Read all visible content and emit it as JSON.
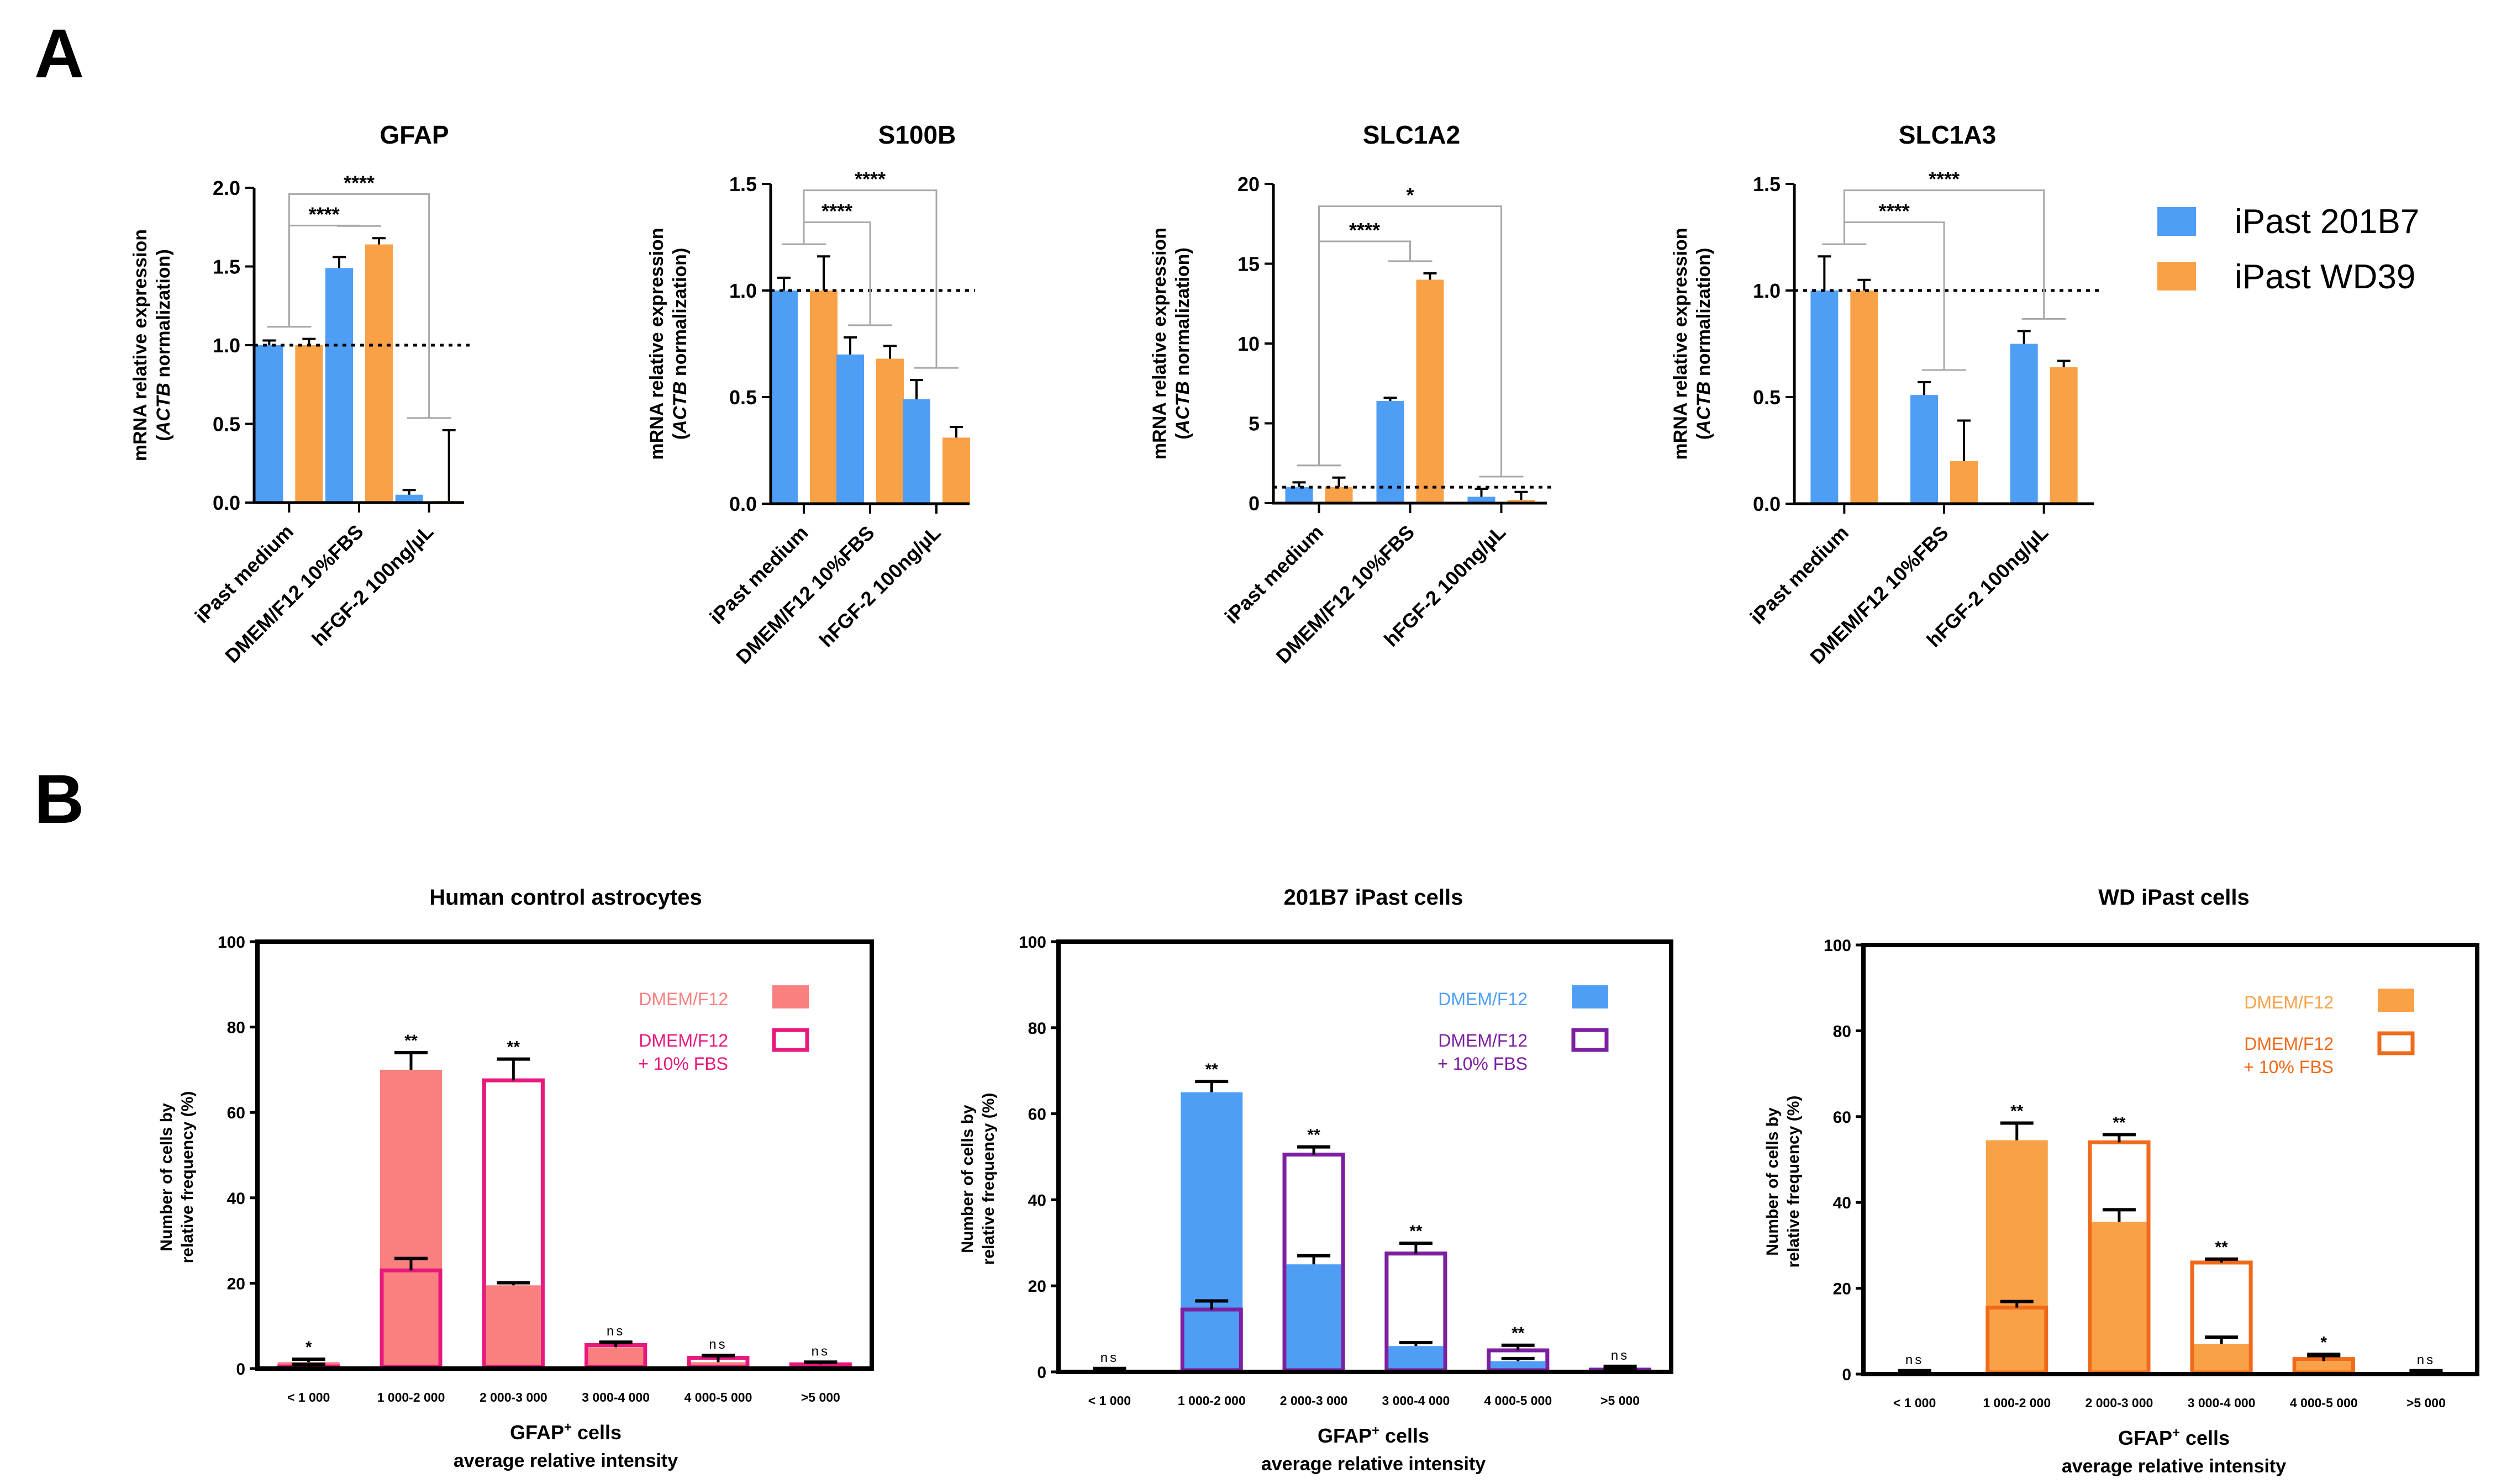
{
  "panels": {
    "a": "A",
    "b": "B"
  },
  "chart_data": [
    {
      "type": "bar",
      "panel": "A",
      "title": "GFAP",
      "ylabel_line1": "mRNA relative expression",
      "ylabel_line2_italic": "ACTB",
      "ylabel_line2_rest": " normalization)",
      "ylabel_line2_open": "(",
      "ylim": [
        0,
        2.0
      ],
      "yticks": [
        "0.0",
        "0.5",
        "1.0",
        "1.5",
        "2.0"
      ],
      "categories": [
        "iPast medium",
        "DMEM/F12 10%FBS",
        "hFGF-2 100ng/µL"
      ],
      "series": [
        {
          "name": "iPast 201B7",
          "values": [
            1.0,
            1.49,
            0.05
          ],
          "errors": [
            0.03,
            0.07,
            0.03
          ]
        },
        {
          "name": "iPast WD39",
          "values": [
            1.0,
            1.64,
            0.01
          ],
          "errors": [
            0.04,
            0.04,
            0.45
          ]
        }
      ],
      "reference_line": 1.0,
      "significance": [
        "****",
        "****"
      ]
    },
    {
      "type": "bar",
      "panel": "A",
      "title": "S100B",
      "ylabel_line1": "mRNA relative expression",
      "ylabel_line2_italic": "ACTB",
      "ylabel_line2_rest": " normalization)",
      "ylabel_line2_open": "(",
      "ylim": [
        0,
        1.5
      ],
      "yticks": [
        "0.0",
        "0.5",
        "1.0",
        "1.5"
      ],
      "categories": [
        "iPast medium",
        "DMEM/F12 10%FBS",
        "hFGF-2 100ng/µL"
      ],
      "series": [
        {
          "name": "iPast 201B7",
          "values": [
            1.0,
            0.7,
            0.49
          ],
          "errors": [
            0.06,
            0.08,
            0.09
          ]
        },
        {
          "name": "iPast WD39",
          "values": [
            1.0,
            0.68,
            0.31
          ],
          "errors": [
            0.16,
            0.06,
            0.05
          ]
        }
      ],
      "reference_line": 1.0,
      "significance": [
        "****",
        "****"
      ]
    },
    {
      "type": "bar",
      "panel": "A",
      "title": "SLC1A2",
      "ylabel_line1": "mRNA relative expression",
      "ylabel_line2_italic": "ACTB",
      "ylabel_line2_rest": " normalization)",
      "ylabel_line2_open": "(",
      "ylim": [
        0,
        20
      ],
      "yticks": [
        "0",
        "5",
        "10",
        "15",
        "20"
      ],
      "categories": [
        "iPast medium",
        "DMEM/F12 10%FBS",
        "hFGF-2 100ng/µL"
      ],
      "series": [
        {
          "name": "iPast 201B7",
          "values": [
            1.0,
            6.4,
            0.4
          ],
          "errors": [
            0.3,
            0.2,
            0.5
          ]
        },
        {
          "name": "iPast WD39",
          "values": [
            1.0,
            14.0,
            0.2
          ],
          "errors": [
            0.6,
            0.4,
            0.5
          ]
        }
      ],
      "reference_line": 1.0,
      "significance": [
        "****",
        "*"
      ]
    },
    {
      "type": "bar",
      "panel": "A",
      "title": "SLC1A3",
      "ylabel_line1": "mRNA relative expression",
      "ylabel_line2_italic": "ACTB",
      "ylabel_line2_rest": " normalization)",
      "ylabel_line2_open": "(",
      "ylim": [
        0,
        1.5
      ],
      "yticks": [
        "0.0",
        "0.5",
        "1.0",
        "1.5"
      ],
      "categories": [
        "iPast medium",
        "DMEM/F12 10%FBS",
        "hFGF-2 100ng/µL"
      ],
      "series": [
        {
          "name": "iPast 201B7",
          "values": [
            1.0,
            0.51,
            0.75
          ],
          "errors": [
            0.16,
            0.06,
            0.06
          ]
        },
        {
          "name": "iPast WD39",
          "values": [
            1.0,
            0.2,
            0.64
          ],
          "errors": [
            0.05,
            0.19,
            0.03
          ]
        }
      ],
      "reference_line": 1.0,
      "significance": [
        "****",
        "****"
      ]
    },
    {
      "type": "bar",
      "panel": "B",
      "title": "Human control astrocytes",
      "ylabel_line1": "Number of cells by",
      "ylabel_line2": "relative frequency (%)",
      "xlabel_line1_base": "GFAP",
      "xlabel_line1_sup": "+",
      "xlabel_line1_rest": " cells",
      "xlabel_line2": "average relative intensity",
      "ylim": [
        0,
        100
      ],
      "yticks": [
        "0",
        "20",
        "40",
        "60",
        "80",
        "100"
      ],
      "categories": [
        "< 1 000",
        "1 000-2 000",
        "2 000-3 000",
        "3 000-4 000",
        "4 000-5 000",
        ">5 000"
      ],
      "legend": [
        "DMEM/F12",
        "DMEM/F12",
        "+ 10% FBS"
      ],
      "series": [
        {
          "name": "DMEM/F12",
          "values": [
            1.5,
            70.0,
            19.5,
            5.0,
            1.5,
            1.0
          ],
          "errors": [
            0.7,
            4.0,
            0.6,
            1.2,
            1.6,
            0.5
          ]
        },
        {
          "name": "DMEM/F12 + 10% FBS",
          "values": [
            0.5,
            23.0,
            67.5,
            5.5,
            2.5,
            1.0
          ],
          "errors": [
            0.5,
            2.8,
            5.0,
            0.6,
            0.5,
            0.5
          ]
        }
      ],
      "significance": [
        "*",
        "**",
        "**",
        "ns",
        "ns",
        "ns"
      ]
    },
    {
      "type": "bar",
      "panel": "B",
      "title": "201B7 iPast cells",
      "ylabel_line1": "Number of cells by",
      "ylabel_line2": "relative frequency (%)",
      "xlabel_line1_base": "GFAP",
      "xlabel_line1_sup": "+",
      "xlabel_line1_rest": " cells",
      "xlabel_line2": "average relative intensity",
      "ylim": [
        0,
        100
      ],
      "yticks": [
        "0",
        "20",
        "40",
        "60",
        "80",
        "100"
      ],
      "categories": [
        "< 1 000",
        "1 000-2 000",
        "2 000-3 000",
        "3 000-4 000",
        "4 000-5 000",
        ">5 000"
      ],
      "legend": [
        "DMEM/F12",
        "DMEM/F12",
        "+ 10% FBS"
      ],
      "series": [
        {
          "name": "DMEM/F12",
          "values": [
            0.5,
            65.0,
            25.0,
            6.0,
            2.5,
            1.0
          ],
          "errors": [
            0.3,
            2.5,
            2.0,
            0.8,
            0.6,
            0.3
          ]
        },
        {
          "name": "DMEM/F12 + 10% FBS",
          "values": [
            0.3,
            14.5,
            50.5,
            27.5,
            5.0,
            0.5
          ],
          "errors": [
            0.2,
            2.0,
            1.8,
            2.4,
            1.2,
            0.3
          ]
        }
      ],
      "significance": [
        "ns",
        "**",
        "**",
        "**",
        "**",
        "ns"
      ]
    },
    {
      "type": "bar",
      "panel": "B",
      "title": "WD iPast cells",
      "ylabel_line1": "Number of cells by",
      "ylabel_line2": "relative frequency (%)",
      "xlabel_line1_base": "GFAP",
      "xlabel_line1_sup": "+",
      "xlabel_line1_rest": " cells",
      "xlabel_line2": "average relative intensity",
      "ylim": [
        0,
        100
      ],
      "yticks": [
        "0",
        "20",
        "40",
        "60",
        "80",
        "100"
      ],
      "categories": [
        "< 1 000",
        "1 000-2 000",
        "2 000-3 000",
        "3 000-4 000",
        "4 000-5 000",
        ">5 000"
      ],
      "legend": [
        "DMEM/F12",
        "DMEM/F12",
        "+ 10% FBS"
      ],
      "series": [
        {
          "name": "DMEM/F12",
          "values": [
            0.5,
            54.5,
            35.5,
            7.0,
            3.0,
            0.5
          ],
          "errors": [
            0.3,
            4.0,
            2.8,
            1.6,
            1.6,
            0.3
          ]
        },
        {
          "name": "DMEM/F12 + 10% FBS",
          "values": [
            0.3,
            15.5,
            54.0,
            26.0,
            3.5,
            0.3
          ],
          "errors": [
            0.2,
            1.4,
            1.8,
            0.8,
            0.8,
            0.2
          ]
        }
      ],
      "significance": [
        "ns",
        "**",
        "**",
        "**",
        "*",
        "ns"
      ]
    }
  ],
  "legend_a": [
    {
      "label": "iPast 201B7"
    },
    {
      "label": "iPast WD39"
    }
  ],
  "colors": {
    "blue": "#4f9ef5",
    "orange": "#f9a146",
    "pink_fill": "#f8807f",
    "pink_line": "#e8187d",
    "purple_line": "#7c1fa0",
    "orange_line": "#f06a1a",
    "axis": "#000000",
    "bracket": "#a8a8a8"
  }
}
